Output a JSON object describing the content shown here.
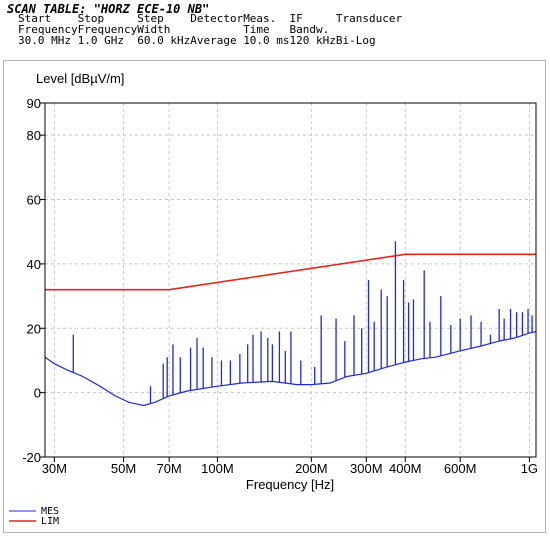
{
  "header": {
    "title": "SCAN TABLE: \"HORZ ECE-10 NB\"",
    "columns": [
      {
        "label1": "Start",
        "label2": "Frequency",
        "value": "30.0 MHz"
      },
      {
        "label1": "Stop",
        "label2": "Frequency",
        "value": "1.0 GHz"
      },
      {
        "label1": "Step",
        "label2": "Width",
        "value": "60.0 kHz"
      },
      {
        "label1": "Detector",
        "label2": "",
        "value": "Average"
      },
      {
        "label1": "Meas.",
        "label2": "Time",
        "value": "10.0 ms"
      },
      {
        "label1": "IF",
        "label2": "Bandw.",
        "value": "120 kHz"
      },
      {
        "label1": "Transducer",
        "label2": "",
        "value": "Bi-Log"
      }
    ]
  },
  "chart_data": {
    "type": "line",
    "xscale": "log",
    "xlabel": "Frequency [Hz]",
    "ylabel": "Level [dBµV/m]",
    "xlim": [
      28000000,
      1050000000
    ],
    "ylim": [
      -20,
      90
    ],
    "x_ticks": [
      {
        "value": 30000000,
        "label": "30M"
      },
      {
        "value": 50000000,
        "label": "50M"
      },
      {
        "value": 70000000,
        "label": "70M"
      },
      {
        "value": 100000000,
        "label": "100M"
      },
      {
        "value": 200000000,
        "label": "200M"
      },
      {
        "value": 300000000,
        "label": "300M"
      },
      {
        "value": 400000000,
        "label": "400M"
      },
      {
        "value": 600000000,
        "label": "600M"
      },
      {
        "value": 1000000000,
        "label": "1G"
      }
    ],
    "y_ticks": [
      -20,
      0,
      20,
      40,
      60,
      80,
      90
    ],
    "grid": true,
    "legend_position": "bottom-left",
    "series": [
      {
        "name": "MES",
        "color": "#1f2bd6",
        "baseline": [
          [
            28000000,
            11
          ],
          [
            30000000,
            9
          ],
          [
            33000000,
            7
          ],
          [
            37000000,
            5
          ],
          [
            42000000,
            2
          ],
          [
            47000000,
            -1
          ],
          [
            52000000,
            -3
          ],
          [
            58000000,
            -4
          ],
          [
            63000000,
            -3
          ],
          [
            70000000,
            -1
          ],
          [
            80000000,
            0.5
          ],
          [
            100000000,
            2
          ],
          [
            120000000,
            3
          ],
          [
            150000000,
            3.5
          ],
          [
            180000000,
            2.5
          ],
          [
            200000000,
            2.5
          ],
          [
            230000000,
            3
          ],
          [
            260000000,
            5
          ],
          [
            300000000,
            6
          ],
          [
            350000000,
            8
          ],
          [
            400000000,
            9.5
          ],
          [
            450000000,
            10.5
          ],
          [
            500000000,
            11
          ],
          [
            600000000,
            13
          ],
          [
            700000000,
            14.5
          ],
          [
            800000000,
            16
          ],
          [
            900000000,
            17
          ],
          [
            1000000000,
            18.5
          ],
          [
            1050000000,
            19
          ]
        ],
        "spikes": [
          [
            34500000,
            18
          ],
          [
            61000000,
            2
          ],
          [
            67000000,
            9
          ],
          [
            69000000,
            11
          ],
          [
            72000000,
            15
          ],
          [
            76000000,
            11
          ],
          [
            82000000,
            14
          ],
          [
            86000000,
            17
          ],
          [
            90000000,
            14
          ],
          [
            96000000,
            11
          ],
          [
            103000000,
            10
          ],
          [
            110000000,
            10
          ],
          [
            118000000,
            12
          ],
          [
            125000000,
            15
          ],
          [
            130000000,
            18
          ],
          [
            138000000,
            19
          ],
          [
            145000000,
            17
          ],
          [
            150000000,
            15
          ],
          [
            158000000,
            19
          ],
          [
            165000000,
            13
          ],
          [
            172000000,
            19
          ],
          [
            185000000,
            10
          ],
          [
            205000000,
            8
          ],
          [
            215000000,
            24
          ],
          [
            240000000,
            23
          ],
          [
            256000000,
            16
          ],
          [
            274000000,
            24
          ],
          [
            290000000,
            20
          ],
          [
            305000000,
            35
          ],
          [
            318000000,
            22
          ],
          [
            335000000,
            32
          ],
          [
            350000000,
            30
          ],
          [
            372000000,
            47
          ],
          [
            395000000,
            35
          ],
          [
            410000000,
            28
          ],
          [
            425000000,
            29
          ],
          [
            460000000,
            38
          ],
          [
            480000000,
            22
          ],
          [
            520000000,
            30
          ],
          [
            560000000,
            21
          ],
          [
            600000000,
            23
          ],
          [
            650000000,
            24
          ],
          [
            700000000,
            22
          ],
          [
            750000000,
            18
          ],
          [
            800000000,
            26
          ],
          [
            830000000,
            23
          ],
          [
            870000000,
            26
          ],
          [
            910000000,
            25
          ],
          [
            950000000,
            25
          ],
          [
            990000000,
            26
          ],
          [
            1020000000,
            24
          ]
        ]
      },
      {
        "name": "LIM",
        "color": "#e0281e",
        "points": [
          [
            28000000,
            32
          ],
          [
            70000000,
            32
          ],
          [
            400000000,
            43
          ],
          [
            1050000000,
            43
          ]
        ]
      }
    ]
  }
}
